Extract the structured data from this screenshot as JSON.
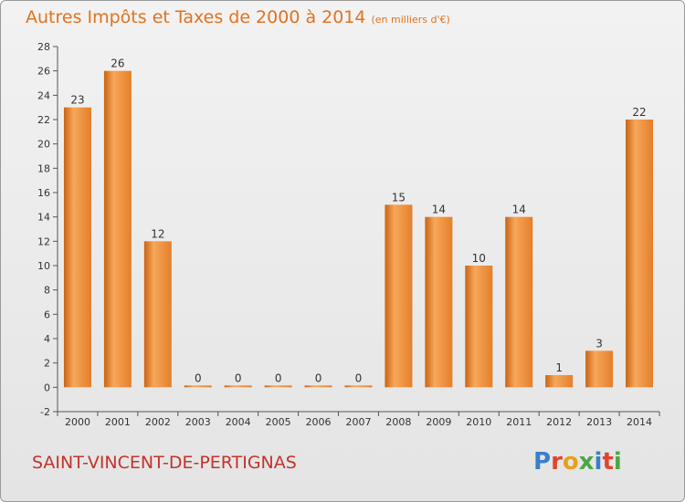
{
  "header": {
    "title": "Autres Impôts et Taxes de 2000 à 2014",
    "unit": "(en milliers d'€)"
  },
  "footer": {
    "commune": "SAINT-VINCENT-DE-PERTIGNAS",
    "logo_letters": [
      "P",
      "r",
      "o",
      "x",
      "i",
      "t",
      "i"
    ]
  },
  "colors": {
    "bar_light": "#f7a75a",
    "bar_dark": "#c96413",
    "title": "#e2721e",
    "commune": "#c4322c"
  },
  "chart_data": {
    "type": "bar",
    "title": "Autres Impôts et Taxes de 2000 à 2014",
    "subtitle": "(en milliers d'€)",
    "xlabel": "",
    "ylabel": "",
    "categories": [
      "2000",
      "2001",
      "2002",
      "2003",
      "2004",
      "2005",
      "2006",
      "2007",
      "2008",
      "2009",
      "2010",
      "2011",
      "2012",
      "2013",
      "2014"
    ],
    "values": [
      23,
      26,
      12,
      0,
      0,
      0,
      0,
      0,
      15,
      14,
      10,
      14,
      1,
      3,
      22
    ],
    "data_labels": [
      "23",
      "26",
      "12",
      "0",
      "0",
      "0",
      "0",
      "0",
      "15",
      "14",
      "10",
      "14",
      "1",
      "3",
      "22"
    ],
    "ylim": [
      -2,
      28
    ],
    "yticks": [
      -2,
      0,
      2,
      4,
      6,
      8,
      10,
      12,
      14,
      16,
      18,
      20,
      22,
      24,
      26,
      28
    ],
    "ytick_labels": [
      "-2",
      "0",
      "2",
      "4",
      "6",
      "8",
      "10",
      "12",
      "14",
      "16",
      "18",
      "20",
      "22",
      "24",
      "26",
      "28"
    ],
    "grid": false,
    "legend": "none"
  }
}
